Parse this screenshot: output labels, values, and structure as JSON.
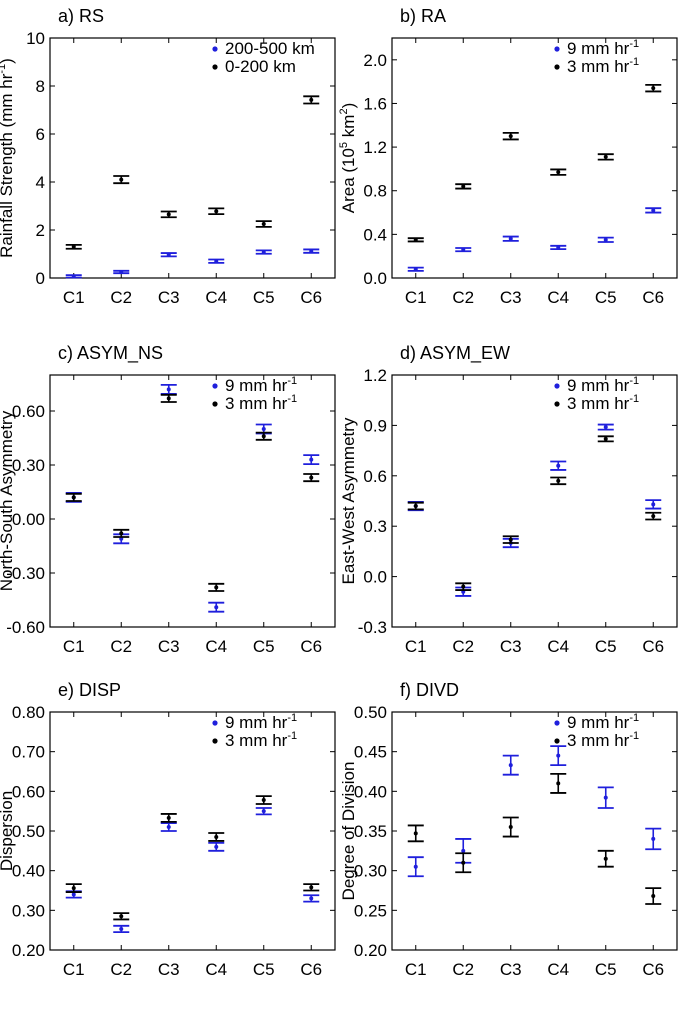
{
  "chart_data": [
    {
      "type": "errorbar",
      "title": "a) RS",
      "ylabel": "Rainfall Strength (mm hr",
      "ylabel_sup": "-1",
      "ylabel_end": ")",
      "ylim": [
        0,
        10
      ],
      "yticks": [
        0,
        2,
        4,
        6,
        8,
        10
      ],
      "ytick_labels": [
        "0",
        "2",
        "4",
        "6",
        "8",
        "10"
      ],
      "categories": [
        "C1",
        "C2",
        "C3",
        "C4",
        "C5",
        "C6"
      ],
      "legend": "top-right",
      "series": [
        {
          "name": "200-500 km",
          "name_sup": "",
          "color": "#1f1fdc",
          "values": [
            0.07,
            0.25,
            0.97,
            0.7,
            1.08,
            1.12
          ],
          "err": [
            0.05,
            0.05,
            0.07,
            0.07,
            0.07,
            0.07
          ]
        },
        {
          "name": "0-200 km",
          "name_sup": "",
          "color": "#000000",
          "values": [
            1.3,
            4.1,
            2.65,
            2.78,
            2.25,
            7.42
          ],
          "err": [
            0.08,
            0.15,
            0.12,
            0.12,
            0.12,
            0.15
          ]
        }
      ]
    },
    {
      "type": "errorbar",
      "title": "b) RA",
      "ylabel": "Area (10",
      "ylabel_sup": "5",
      "ylabel_mid": " km",
      "ylabel_sup2": "2",
      "ylabel_end": ")",
      "ylim": [
        0,
        2.2
      ],
      "yticks": [
        0,
        0.4,
        0.8,
        1.2,
        1.6,
        2.0
      ],
      "ytick_labels": [
        "0.0",
        "0.4",
        "0.8",
        "1.2",
        "1.6",
        "2.0"
      ],
      "categories": [
        "C1",
        "C2",
        "C3",
        "C4",
        "C5",
        "C6"
      ],
      "legend": "top-right",
      "series": [
        {
          "name": "9 mm hr",
          "name_sup": "-1",
          "color": "#1f1fdc",
          "values": [
            0.08,
            0.26,
            0.36,
            0.28,
            0.35,
            0.62
          ],
          "err": [
            0.015,
            0.015,
            0.02,
            0.015,
            0.02,
            0.02
          ]
        },
        {
          "name": "3 mm hr",
          "name_sup": "-1",
          "color": "#000000",
          "values": [
            0.35,
            0.84,
            1.3,
            0.97,
            1.11,
            1.74
          ],
          "err": [
            0.015,
            0.02,
            0.03,
            0.025,
            0.025,
            0.03
          ]
        }
      ]
    },
    {
      "type": "errorbar",
      "title": "c) ASYM_NS",
      "ylabel": "North-South Asymmetry",
      "ylabel_sup": "",
      "ylabel_end": "",
      "ylim": [
        -0.6,
        0.8
      ],
      "yticks": [
        -0.6,
        -0.3,
        0.0,
        0.3,
        0.6
      ],
      "ytick_labels": [
        "-0.60",
        "-0.30",
        "0.00",
        "0.30",
        "0.60"
      ],
      "categories": [
        "C1",
        "C2",
        "C3",
        "C4",
        "C5",
        "C6"
      ],
      "legend": "top-right",
      "series": [
        {
          "name": "9 mm hr",
          "name_sup": "-1",
          "color": "#1f1fdc",
          "values": [
            0.12,
            -0.11,
            0.72,
            -0.49,
            0.5,
            0.33
          ],
          "err": [
            0.025,
            0.025,
            0.025,
            0.025,
            0.025,
            0.025
          ]
        },
        {
          "name": "3 mm hr",
          "name_sup": "-1",
          "color": "#000000",
          "values": [
            0.12,
            -0.08,
            0.67,
            -0.38,
            0.46,
            0.23
          ],
          "err": [
            0.02,
            0.02,
            0.02,
            0.02,
            0.02,
            0.02
          ]
        }
      ]
    },
    {
      "type": "errorbar",
      "title": "d) ASYM_EW",
      "ylabel": "East-West Asymmetry",
      "ylabel_sup": "",
      "ylabel_end": "",
      "ylim": [
        -0.3,
        1.2
      ],
      "yticks": [
        -0.3,
        0.0,
        0.3,
        0.6,
        0.9,
        1.2
      ],
      "ytick_labels": [
        "-0.3",
        "0.0",
        "0.3",
        "0.6",
        "0.9",
        "1.2"
      ],
      "categories": [
        "C1",
        "C2",
        "C3",
        "C4",
        "C5",
        "C6"
      ],
      "legend": "top-right",
      "series": [
        {
          "name": "9 mm hr",
          "name_sup": "-1",
          "color": "#1f1fdc",
          "values": [
            0.42,
            -0.09,
            0.2,
            0.66,
            0.89,
            0.43
          ],
          "err": [
            0.025,
            0.025,
            0.025,
            0.025,
            0.015,
            0.025
          ]
        },
        {
          "name": "3 mm hr",
          "name_sup": "-1",
          "color": "#000000",
          "values": [
            0.42,
            -0.06,
            0.22,
            0.57,
            0.82,
            0.36
          ],
          "err": [
            0.02,
            0.02,
            0.02,
            0.02,
            0.015,
            0.02
          ]
        }
      ]
    },
    {
      "type": "errorbar",
      "title": "e) DISP",
      "ylabel": "Dispersion",
      "ylabel_sup": "",
      "ylabel_end": "",
      "ylim": [
        0.2,
        0.8
      ],
      "yticks": [
        0.2,
        0.3,
        0.4,
        0.5,
        0.6,
        0.7,
        0.8
      ],
      "ytick_labels": [
        "0.20",
        "0.30",
        "0.40",
        "0.50",
        "0.60",
        "0.70",
        "0.80"
      ],
      "categories": [
        "C1",
        "C2",
        "C3",
        "C4",
        "C5",
        "C6"
      ],
      "legend": "top-right",
      "series": [
        {
          "name": "9 mm hr",
          "name_sup": "-1",
          "color": "#1f1fdc",
          "values": [
            0.34,
            0.253,
            0.51,
            0.46,
            0.55,
            0.33
          ],
          "err": [
            0.008,
            0.008,
            0.01,
            0.01,
            0.008,
            0.008
          ]
        },
        {
          "name": "3 mm hr",
          "name_sup": "-1",
          "color": "#000000",
          "values": [
            0.356,
            0.285,
            0.533,
            0.485,
            0.578,
            0.358
          ],
          "err": [
            0.01,
            0.008,
            0.01,
            0.01,
            0.01,
            0.008
          ]
        }
      ]
    },
    {
      "type": "errorbar",
      "title": "f) DIVD",
      "ylabel": "Degree of Division",
      "ylabel_sup": "",
      "ylabel_end": "",
      "ylim": [
        0.2,
        0.5
      ],
      "yticks": [
        0.2,
        0.25,
        0.3,
        0.35,
        0.4,
        0.45,
        0.5
      ],
      "ytick_labels": [
        "0.20",
        "0.25",
        "0.30",
        "0.35",
        "0.40",
        "0.45",
        "0.50"
      ],
      "categories": [
        "C1",
        "C2",
        "C3",
        "C4",
        "C5",
        "C6"
      ],
      "legend": "top-right",
      "series": [
        {
          "name": "9 mm hr",
          "name_sup": "-1",
          "color": "#1f1fdc",
          "values": [
            0.305,
            0.325,
            0.433,
            0.445,
            0.392,
            0.34
          ],
          "err": [
            0.012,
            0.015,
            0.012,
            0.012,
            0.013,
            0.013
          ]
        },
        {
          "name": "3 mm hr",
          "name_sup": "-1",
          "color": "#000000",
          "values": [
            0.347,
            0.31,
            0.355,
            0.41,
            0.315,
            0.268
          ],
          "err": [
            0.01,
            0.012,
            0.012,
            0.012,
            0.01,
            0.01
          ]
        }
      ]
    }
  ]
}
